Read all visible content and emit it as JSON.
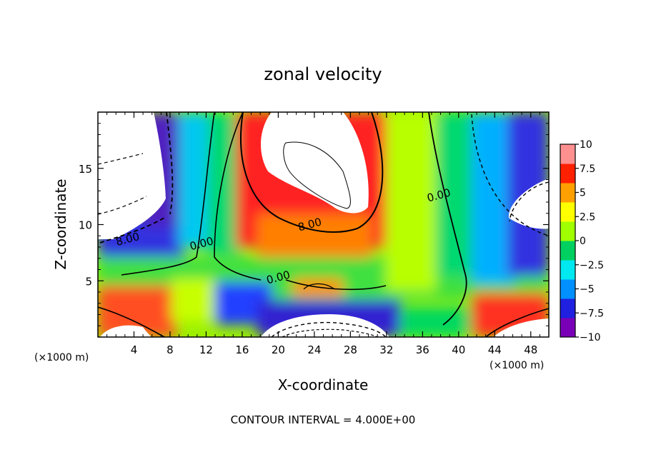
{
  "chart_data": {
    "type": "heatmap",
    "title": "zonal velocity",
    "xlabel": "X-coordinate",
    "ylabel": "Z-coordinate",
    "x_unit_left": "(×1000 m)",
    "x_unit_right": "(×1000 m)",
    "footer": "CONTOUR INTERVAL = 4.000E+00",
    "xlim": [
      0,
      50
    ],
    "ylim": [
      0,
      20
    ],
    "x_ticks": [
      4,
      8,
      12,
      16,
      20,
      24,
      28,
      32,
      36,
      40,
      44,
      48
    ],
    "x_tick_labels": [
      "4",
      "8",
      "12",
      "16",
      "20",
      "24",
      "28",
      "32",
      "36",
      "40",
      "44",
      "48"
    ],
    "y_ticks": [
      5,
      10,
      15
    ],
    "y_tick_labels": [
      "5",
      "10",
      "15"
    ],
    "colorbar": {
      "min": -10,
      "max": 10,
      "ticks": [
        10,
        7.5,
        5,
        2.5,
        0,
        -2.5,
        -5,
        -7.5,
        -10
      ],
      "tick_labels": [
        "10",
        "7.5",
        "5",
        "2.5",
        "0",
        "−2.5",
        "−5",
        "−7.5",
        "−10"
      ],
      "colors": [
        "#7a00b8",
        "#2020e0",
        "#0090ff",
        "#00e8f0",
        "#00d060",
        "#a0ff00",
        "#ffff00",
        "#ffa000",
        "#ff2000",
        "#ff9090"
      ]
    },
    "contour_labels": [
      {
        "text": "8.00",
        "x": 3.3,
        "y": 8.7
      },
      {
        "text": "0.00",
        "x": 11.5,
        "y": 8.3
      },
      {
        "text": "0.00",
        "x": 20.0,
        "y": 5.3
      },
      {
        "text": "8.00",
        "x": 23.5,
        "y": 10.0
      },
      {
        "text": "0.00",
        "x": 37.8,
        "y": 12.6
      }
    ],
    "grid": false,
    "legend": "colorbar right"
  }
}
